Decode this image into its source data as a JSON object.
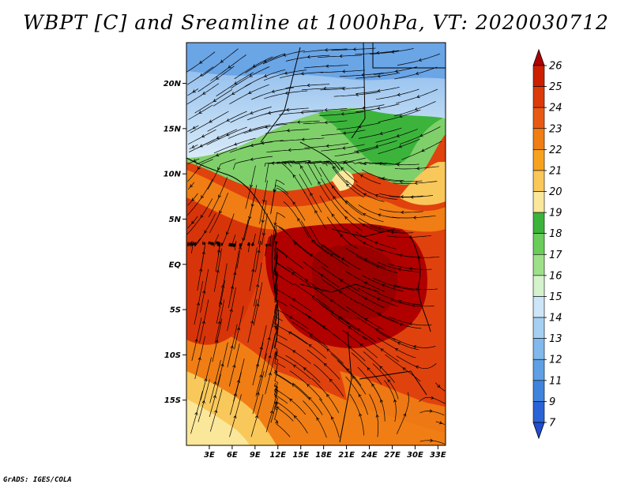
{
  "title": "WBPT [C] and Sreamline at 1000hPa, VT: 2020030712",
  "footer": "GrADS: IGES/COLA",
  "map": {
    "lon_range": [
      0,
      34
    ],
    "lat_range": [
      -20,
      24.5
    ],
    "lat_ticks": [
      "20N",
      "15N",
      "10N",
      "5N",
      "EQ",
      "5S",
      "10S",
      "15S"
    ],
    "lon_ticks": [
      "3E",
      "6E",
      "9E",
      "12E",
      "15E",
      "18E",
      "21E",
      "24E",
      "27E",
      "30E",
      "33E"
    ]
  },
  "colorbar": {
    "labels": [
      "26",
      "25",
      "24",
      "23",
      "22",
      "21",
      "20",
      "19",
      "18",
      "17",
      "16",
      "15",
      "14",
      "13",
      "12",
      "11",
      "9",
      "7"
    ],
    "colors": [
      "#b10000",
      "#cc1f00",
      "#dd3a0a",
      "#e85a14",
      "#f07e14",
      "#f7a21e",
      "#f9c85a",
      "#fbe79a",
      "#3cb43c",
      "#6acd5a",
      "#9ee08a",
      "#d4f2cc",
      "#cde6f7",
      "#a6d0f2",
      "#82b9ec",
      "#5ea0e3",
      "#3f84dc",
      "#2a63d6",
      "#1f4fd0"
    ]
  }
}
